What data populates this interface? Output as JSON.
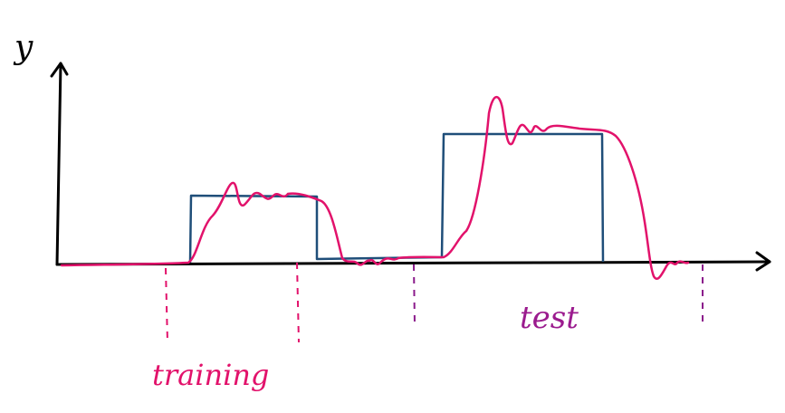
{
  "axis": {
    "y_label": "y"
  },
  "annotations": {
    "training_label": "training",
    "test_label": "test"
  },
  "colors": {
    "axis": "#000000",
    "target_signal": "#1f4e79",
    "response_signal": "#e2126b",
    "training_marker": "#e2126b",
    "test_marker": "#8b1a8b",
    "training_text": "#e2126b",
    "test_text": "#9b1b8e"
  }
}
